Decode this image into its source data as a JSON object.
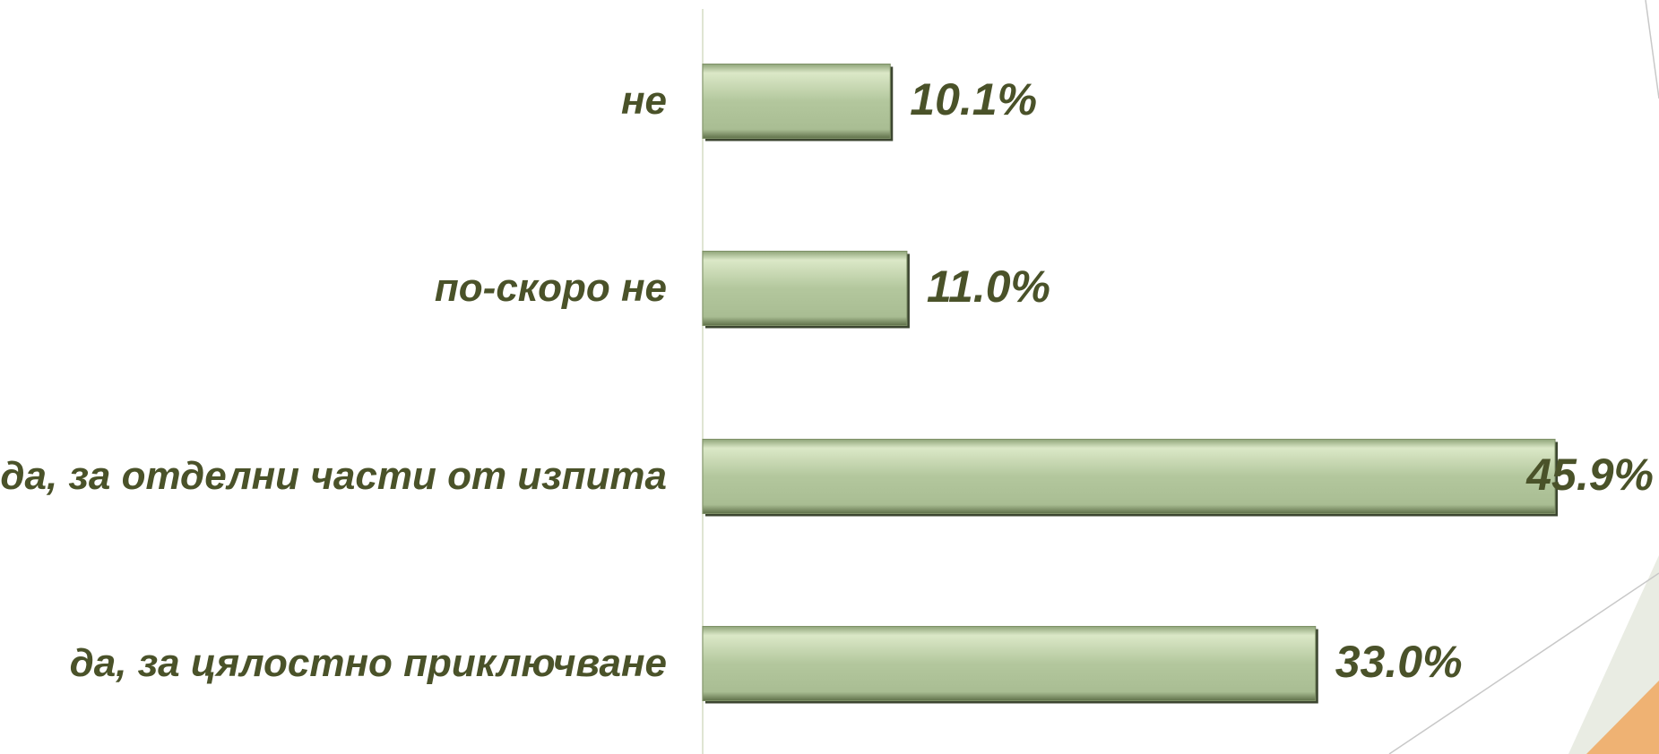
{
  "chart_data": {
    "type": "bar",
    "orientation": "horizontal",
    "categories": [
      "не",
      "по-скоро не",
      "да, за отделни части от изпита",
      "да, за цялостно приключване"
    ],
    "values": [
      10.1,
      11.0,
      45.9,
      33.0
    ],
    "value_labels": [
      "10.1%",
      "11.0%",
      "45.9%",
      "33.0%"
    ],
    "color": "#b3c79d",
    "xlim": [
      0,
      50
    ]
  }
}
